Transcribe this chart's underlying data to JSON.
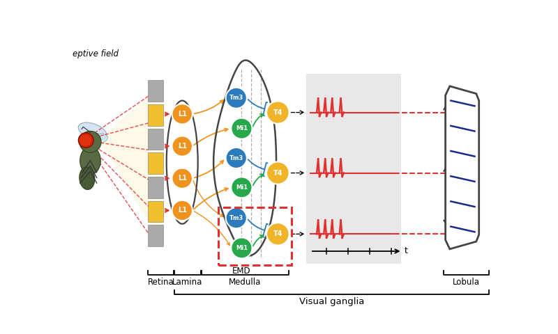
{
  "bg_color": "#ffffff",
  "label_retina": "Retina",
  "label_lamina": "Lamina",
  "label_medulla": "Medulla",
  "label_visual_ganglia": "Visual ganglia",
  "label_lobula": "Lobula",
  "label_emd": "EMD",
  "label_t": "t",
  "label_receptive": "eptive field",
  "orange": "#F0921E",
  "blue": "#2B7BBD",
  "green": "#27A84A",
  "yellow": "#F0B429",
  "red": "#E03030",
  "dark": "#444444",
  "gray_bg": "#E0E0E0",
  "white": "#ffffff"
}
